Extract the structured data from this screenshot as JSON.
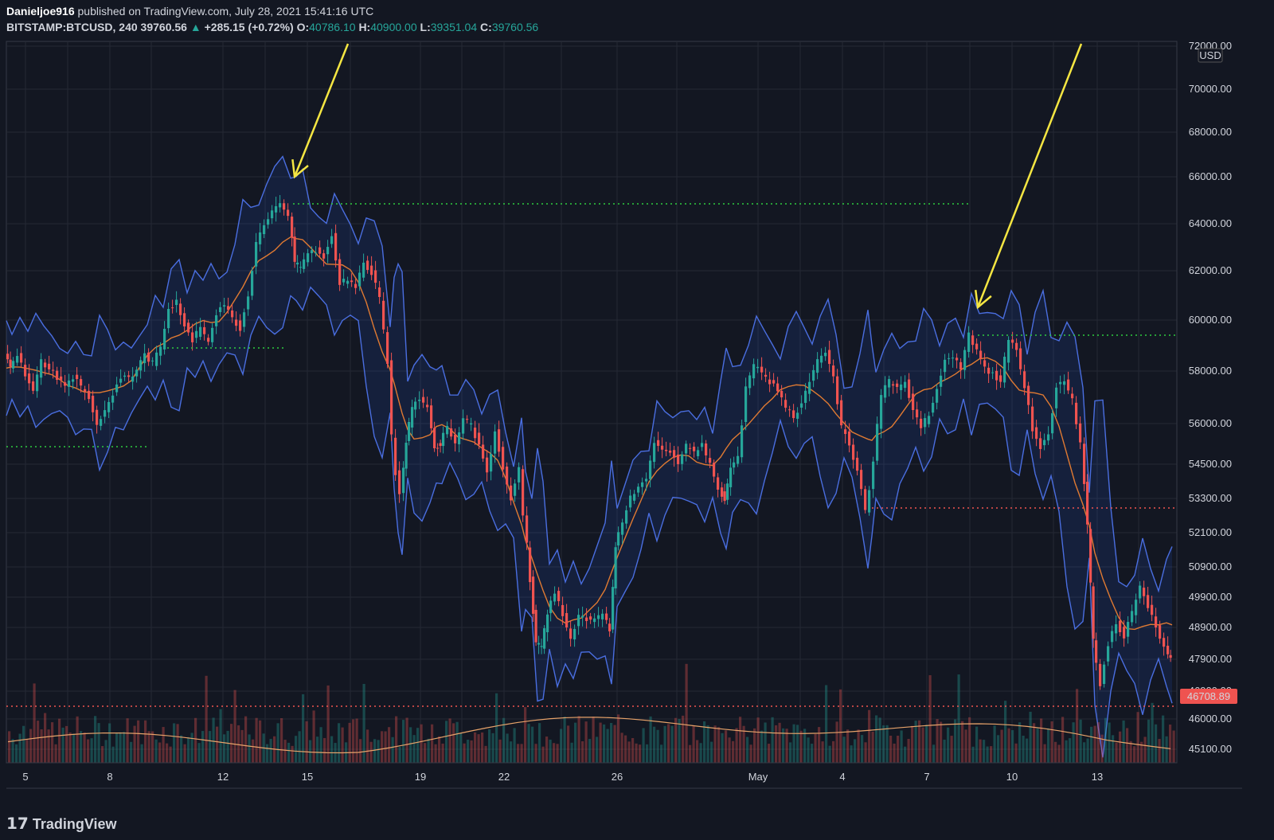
{
  "header": {
    "author": "Danieljoe916",
    "published": "published on TradingView.com, July 28, 2021 15:41:16 UTC",
    "symbol": "BITSTAMP:BTCUSD, 240",
    "last": "39760.56",
    "change_arrow": "▲",
    "change": "+285.15 (+0.72%)",
    "o_label": "O:",
    "o_value": "40786.10",
    "h_label": "H:",
    "h_value": "40900.00",
    "l_label": "L:",
    "l_value": "39351.04",
    "c_label": "C:",
    "c_value": "39760.56"
  },
  "footer": {
    "brand": "TradingView",
    "logo_icon": "tradingview-logo-icon"
  },
  "chart_data": {
    "type": "line",
    "currency_label": "USD",
    "last_price_label": "46708.89",
    "y_ticks": [
      "72000.00",
      "70000.00",
      "68000.00",
      "66000.00",
      "64000.00",
      "62000.00",
      "60000.00",
      "58000.00",
      "56000.00",
      "54500.00",
      "53300.00",
      "52100.00",
      "50900.00",
      "49900.00",
      "48900.00",
      "47900.00",
      "46900.00",
      "46000.00",
      "45100.00"
    ],
    "x_ticks": [
      "5",
      "8",
      "12",
      "15",
      "19",
      "22",
      "26",
      "May",
      "4",
      "7",
      "10",
      "13"
    ],
    "price_path": [
      [
        8,
        58600
      ],
      [
        15,
        58100
      ],
      [
        25,
        58700
      ],
      [
        35,
        57900
      ],
      [
        45,
        57300
      ],
      [
        55,
        58400
      ],
      [
        65,
        58100
      ],
      [
        75,
        57700
      ],
      [
        85,
        57500
      ],
      [
        95,
        57800
      ],
      [
        105,
        57400
      ],
      [
        115,
        57000
      ],
      [
        125,
        55900
      ],
      [
        135,
        56400
      ],
      [
        145,
        57100
      ],
      [
        155,
        57800
      ],
      [
        165,
        57700
      ],
      [
        175,
        58100
      ],
      [
        185,
        58600
      ],
      [
        195,
        58300
      ],
      [
        205,
        58900
      ],
      [
        215,
        60400
      ],
      [
        225,
        60700
      ],
      [
        235,
        59800
      ],
      [
        245,
        59200
      ],
      [
        255,
        59700
      ],
      [
        265,
        59100
      ],
      [
        275,
        60300
      ],
      [
        285,
        60600
      ],
      [
        295,
        60100
      ],
      [
        305,
        59700
      ],
      [
        315,
        61000
      ],
      [
        325,
        63200
      ],
      [
        335,
        63900
      ],
      [
        345,
        64500
      ],
      [
        355,
        64900
      ],
      [
        365,
        64300
      ],
      [
        372,
        62400
      ],
      [
        380,
        62100
      ],
      [
        390,
        62700
      ],
      [
        400,
        62900
      ],
      [
        410,
        62600
      ],
      [
        420,
        63500
      ],
      [
        430,
        61500
      ],
      [
        440,
        61600
      ],
      [
        450,
        61300
      ],
      [
        460,
        62300
      ],
      [
        470,
        61900
      ],
      [
        480,
        60900
      ],
      [
        490,
        58400
      ],
      [
        495,
        55500
      ],
      [
        500,
        54200
      ],
      [
        505,
        53500
      ],
      [
        512,
        55300
      ],
      [
        520,
        56600
      ],
      [
        530,
        56900
      ],
      [
        540,
        56600
      ],
      [
        548,
        55200
      ],
      [
        555,
        55200
      ],
      [
        565,
        55900
      ],
      [
        575,
        55200
      ],
      [
        585,
        56200
      ],
      [
        595,
        55900
      ],
      [
        605,
        55200
      ],
      [
        615,
        54200
      ],
      [
        625,
        55700
      ],
      [
        635,
        54400
      ],
      [
        645,
        53300
      ],
      [
        655,
        54300
      ],
      [
        660,
        52800
      ],
      [
        668,
        50500
      ],
      [
        675,
        48400
      ],
      [
        682,
        48300
      ],
      [
        690,
        49300
      ],
      [
        700,
        50100
      ],
      [
        710,
        49300
      ],
      [
        720,
        48500
      ],
      [
        730,
        49300
      ],
      [
        740,
        49200
      ],
      [
        750,
        49100
      ],
      [
        760,
        49300
      ],
      [
        768,
        48800
      ],
      [
        775,
        51700
      ],
      [
        785,
        52500
      ],
      [
        795,
        53300
      ],
      [
        805,
        53700
      ],
      [
        815,
        53900
      ],
      [
        825,
        55300
      ],
      [
        835,
        55100
      ],
      [
        845,
        55000
      ],
      [
        855,
        54500
      ],
      [
        865,
        55200
      ],
      [
        875,
        54900
      ],
      [
        885,
        55200
      ],
      [
        895,
        54500
      ],
      [
        905,
        53600
      ],
      [
        912,
        53300
      ],
      [
        920,
        54300
      ],
      [
        930,
        54700
      ],
      [
        940,
        57300
      ],
      [
        950,
        58200
      ],
      [
        960,
        57900
      ],
      [
        970,
        57600
      ],
      [
        980,
        57300
      ],
      [
        990,
        56600
      ],
      [
        1000,
        56300
      ],
      [
        1010,
        56700
      ],
      [
        1020,
        57700
      ],
      [
        1030,
        58400
      ],
      [
        1040,
        58800
      ],
      [
        1050,
        57700
      ],
      [
        1060,
        55900
      ],
      [
        1070,
        55300
      ],
      [
        1080,
        54200
      ],
      [
        1090,
        52900
      ],
      [
        1095,
        53700
      ],
      [
        1100,
        54700
      ],
      [
        1110,
        57100
      ],
      [
        1120,
        57600
      ],
      [
        1130,
        57300
      ],
      [
        1140,
        57600
      ],
      [
        1150,
        56500
      ],
      [
        1160,
        55900
      ],
      [
        1170,
        56300
      ],
      [
        1180,
        57400
      ],
      [
        1190,
        58400
      ],
      [
        1200,
        58600
      ],
      [
        1210,
        58100
      ],
      [
        1220,
        59400
      ],
      [
        1230,
        58900
      ],
      [
        1240,
        58100
      ],
      [
        1250,
        57900
      ],
      [
        1260,
        57600
      ],
      [
        1270,
        59300
      ],
      [
        1280,
        58800
      ],
      [
        1290,
        57400
      ],
      [
        1300,
        55800
      ],
      [
        1310,
        55100
      ],
      [
        1320,
        55600
      ],
      [
        1330,
        57400
      ],
      [
        1340,
        57600
      ],
      [
        1350,
        56900
      ],
      [
        1360,
        55300
      ],
      [
        1368,
        52300
      ],
      [
        1375,
        48500
      ],
      [
        1385,
        47100
      ],
      [
        1395,
        48400
      ],
      [
        1405,
        49100
      ],
      [
        1415,
        48600
      ],
      [
        1425,
        49400
      ],
      [
        1435,
        50300
      ],
      [
        1445,
        49600
      ],
      [
        1455,
        48900
      ],
      [
        1465,
        48300
      ],
      [
        1472,
        47900
      ]
    ],
    "annotations": {
      "arrow_1": {
        "from": [
          437,
          55
        ],
        "to": [
          370,
          222
        ]
      },
      "arrow_2": {
        "from": [
          1358,
          55
        ],
        "to": [
          1228,
          386
        ]
      }
    }
  }
}
